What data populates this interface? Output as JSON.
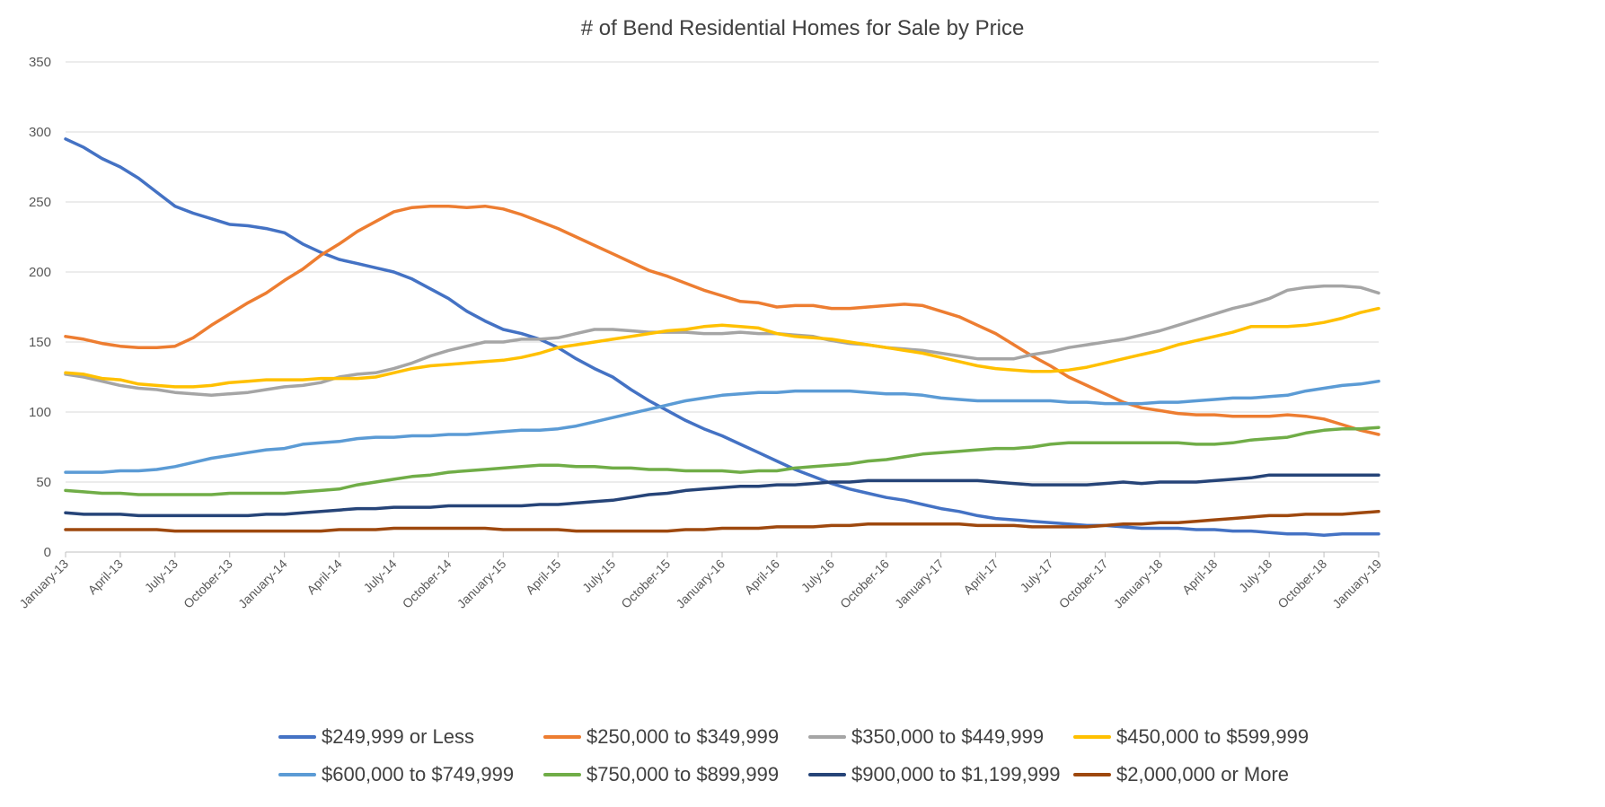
{
  "chart_data": {
    "type": "line",
    "title": "# of Bend Residential Homes for Sale by Price",
    "xlabel": "",
    "ylabel": "",
    "ylim": [
      0,
      350
    ],
    "yticks": [
      0,
      50,
      100,
      150,
      200,
      250,
      300,
      350
    ],
    "grid": true,
    "legend_position": "bottom",
    "x_tick_labels": [
      "January-13",
      "April-13",
      "July-13",
      "October-13",
      "January-14",
      "April-14",
      "July-14",
      "October-14",
      "January-15",
      "April-15",
      "July-15",
      "October-15",
      "January-16",
      "April-16",
      "July-16",
      "October-16",
      "January-17",
      "April-17",
      "July-17",
      "October-17",
      "January-18",
      "April-18",
      "July-18",
      "October-18",
      "January-19"
    ],
    "x_start": "2013-01",
    "x_step": "1 month",
    "series": [
      {
        "name": "$249,999 or Less",
        "color": "#4472C4",
        "values": [
          295,
          289,
          281,
          275,
          267,
          257,
          247,
          242,
          238,
          234,
          233,
          231,
          228,
          220,
          214,
          209,
          206,
          203,
          200,
          195,
          188,
          181,
          172,
          165,
          159,
          156,
          152,
          146,
          138,
          131,
          125,
          116,
          108,
          101,
          94,
          88,
          83,
          77,
          71,
          65,
          59,
          54,
          49,
          45,
          42,
          39,
          37,
          34,
          31,
          29,
          26,
          24,
          23,
          22,
          21,
          20,
          19,
          19,
          18,
          17,
          17,
          17,
          16,
          16,
          15,
          15,
          14,
          13,
          13,
          12,
          13,
          13,
          13
        ]
      },
      {
        "name": "$250,000 to $349,999",
        "color": "#ED7D31",
        "values": [
          154,
          152,
          149,
          147,
          146,
          146,
          147,
          153,
          162,
          170,
          178,
          185,
          194,
          202,
          212,
          220,
          229,
          236,
          243,
          246,
          247,
          247,
          246,
          247,
          245,
          241,
          236,
          231,
          225,
          219,
          213,
          207,
          201,
          197,
          192,
          187,
          183,
          179,
          178,
          175,
          176,
          176,
          174,
          174,
          175,
          176,
          177,
          176,
          172,
          168,
          162,
          156,
          148,
          140,
          133,
          125,
          119,
          113,
          107,
          103,
          101,
          99,
          98,
          98,
          97,
          97,
          97,
          98,
          97,
          95,
          91,
          87,
          84
        ]
      },
      {
        "name": "$350,000 to $449,999",
        "color": "#A5A5A5",
        "values": [
          127,
          125,
          122,
          119,
          117,
          116,
          114,
          113,
          112,
          113,
          114,
          116,
          118,
          119,
          121,
          125,
          127,
          128,
          131,
          135,
          140,
          144,
          147,
          150,
          150,
          152,
          152,
          153,
          156,
          159,
          159,
          158,
          157,
          157,
          157,
          156,
          156,
          157,
          156,
          156,
          155,
          154,
          151,
          149,
          148,
          146,
          145,
          144,
          142,
          140,
          138,
          138,
          138,
          141,
          143,
          146,
          148,
          150,
          152,
          155,
          158,
          162,
          166,
          170,
          174,
          177,
          181,
          187,
          189,
          190,
          190,
          189,
          185
        ]
      },
      {
        "name": "$450,000 to $599,999",
        "color": "#FFC000",
        "values": [
          128,
          127,
          124,
          123,
          120,
          119,
          118,
          118,
          119,
          121,
          122,
          123,
          123,
          123,
          124,
          124,
          124,
          125,
          128,
          131,
          133,
          134,
          135,
          136,
          137,
          139,
          142,
          146,
          148,
          150,
          152,
          154,
          156,
          158,
          159,
          161,
          162,
          161,
          160,
          156,
          154,
          153,
          152,
          150,
          148,
          146,
          144,
          142,
          139,
          136,
          133,
          131,
          130,
          129,
          129,
          130,
          132,
          135,
          138,
          141,
          144,
          148,
          151,
          154,
          157,
          161,
          161,
          161,
          162,
          164,
          167,
          171,
          174
        ]
      },
      {
        "name": "$600,000 to $749,999",
        "color": "#5B9BD5",
        "values": [
          57,
          57,
          57,
          58,
          58,
          59,
          61,
          64,
          67,
          69,
          71,
          73,
          74,
          77,
          78,
          79,
          81,
          82,
          82,
          83,
          83,
          84,
          84,
          85,
          86,
          87,
          87,
          88,
          90,
          93,
          96,
          99,
          102,
          105,
          108,
          110,
          112,
          113,
          114,
          114,
          115,
          115,
          115,
          115,
          114,
          113,
          113,
          112,
          110,
          109,
          108,
          108,
          108,
          108,
          108,
          107,
          107,
          106,
          106,
          106,
          107,
          107,
          108,
          109,
          110,
          110,
          111,
          112,
          115,
          117,
          119,
          120,
          122
        ]
      },
      {
        "name": "$750,000 to $899,999",
        "color": "#70AD47",
        "values": [
          44,
          43,
          42,
          42,
          41,
          41,
          41,
          41,
          41,
          42,
          42,
          42,
          42,
          43,
          44,
          45,
          48,
          50,
          52,
          54,
          55,
          57,
          58,
          59,
          60,
          61,
          62,
          62,
          61,
          61,
          60,
          60,
          59,
          59,
          58,
          58,
          58,
          57,
          58,
          58,
          60,
          61,
          62,
          63,
          65,
          66,
          68,
          70,
          71,
          72,
          73,
          74,
          74,
          75,
          77,
          78,
          78,
          78,
          78,
          78,
          78,
          78,
          77,
          77,
          78,
          80,
          81,
          82,
          85,
          87,
          88,
          88,
          89
        ]
      },
      {
        "name": "$900,000 to $1,199,999",
        "color": "#264478",
        "values": [
          28,
          27,
          27,
          27,
          26,
          26,
          26,
          26,
          26,
          26,
          26,
          27,
          27,
          28,
          29,
          30,
          31,
          31,
          32,
          32,
          32,
          33,
          33,
          33,
          33,
          33,
          34,
          34,
          35,
          36,
          37,
          39,
          41,
          42,
          44,
          45,
          46,
          47,
          47,
          48,
          48,
          49,
          50,
          50,
          51,
          51,
          51,
          51,
          51,
          51,
          51,
          50,
          49,
          48,
          48,
          48,
          48,
          49,
          50,
          49,
          50,
          50,
          50,
          51,
          52,
          53,
          55,
          55,
          55,
          55,
          55,
          55,
          55
        ]
      },
      {
        "name": "$2,000,000 or More",
        "color": "#9E480E",
        "values": [
          16,
          16,
          16,
          16,
          16,
          16,
          15,
          15,
          15,
          15,
          15,
          15,
          15,
          15,
          15,
          16,
          16,
          16,
          17,
          17,
          17,
          17,
          17,
          17,
          16,
          16,
          16,
          16,
          15,
          15,
          15,
          15,
          15,
          15,
          16,
          16,
          17,
          17,
          17,
          18,
          18,
          18,
          19,
          19,
          20,
          20,
          20,
          20,
          20,
          20,
          19,
          19,
          19,
          18,
          18,
          18,
          18,
          19,
          20,
          20,
          21,
          21,
          22,
          23,
          24,
          25,
          26,
          26,
          27,
          27,
          27,
          28,
          29
        ]
      }
    ]
  }
}
